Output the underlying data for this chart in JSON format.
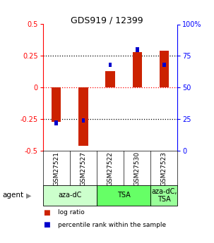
{
  "title": "GDS919 / 12399",
  "samples": [
    "GSM27521",
    "GSM27527",
    "GSM27522",
    "GSM27530",
    "GSM27523"
  ],
  "log_ratios": [
    -0.27,
    -0.46,
    0.13,
    0.28,
    0.29
  ],
  "percentile_ranks_pct": [
    22,
    24,
    68,
    80,
    68
  ],
  "ylim_left": [
    -0.5,
    0.5
  ],
  "ylim_right": [
    0,
    100
  ],
  "yticks_left": [
    -0.5,
    -0.25,
    0,
    0.25,
    0.5
  ],
  "yticks_right": [
    0,
    25,
    50,
    75,
    100
  ],
  "ytick_labels_left": [
    "-0.5",
    "-0.25",
    "0",
    "0.25",
    "0.5"
  ],
  "ytick_labels_right": [
    "0",
    "25",
    "50",
    "75",
    "100%"
  ],
  "hlines_black": [
    -0.25,
    0.25
  ],
  "hline_red": 0,
  "agent_groups": [
    {
      "label": "aza-dC",
      "span": [
        0,
        2
      ],
      "color": "#ccffcc"
    },
    {
      "label": "TSA",
      "span": [
        2,
        4
      ],
      "color": "#66ff66"
    },
    {
      "label": "aza-dC,\nTSA",
      "span": [
        4,
        5
      ],
      "color": "#99ff99"
    }
  ],
  "bar_color_red": "#cc2200",
  "bar_color_blue": "#0000cc",
  "bar_width": 0.35,
  "blue_bar_width": 0.12,
  "background_color": "#ffffff",
  "plot_bg_color": "#ffffff",
  "label_row_color": "#cccccc",
  "legend_items": [
    {
      "color": "#cc2200",
      "label": "log ratio"
    },
    {
      "color": "#0000cc",
      "label": "percentile rank within the sample"
    }
  ]
}
